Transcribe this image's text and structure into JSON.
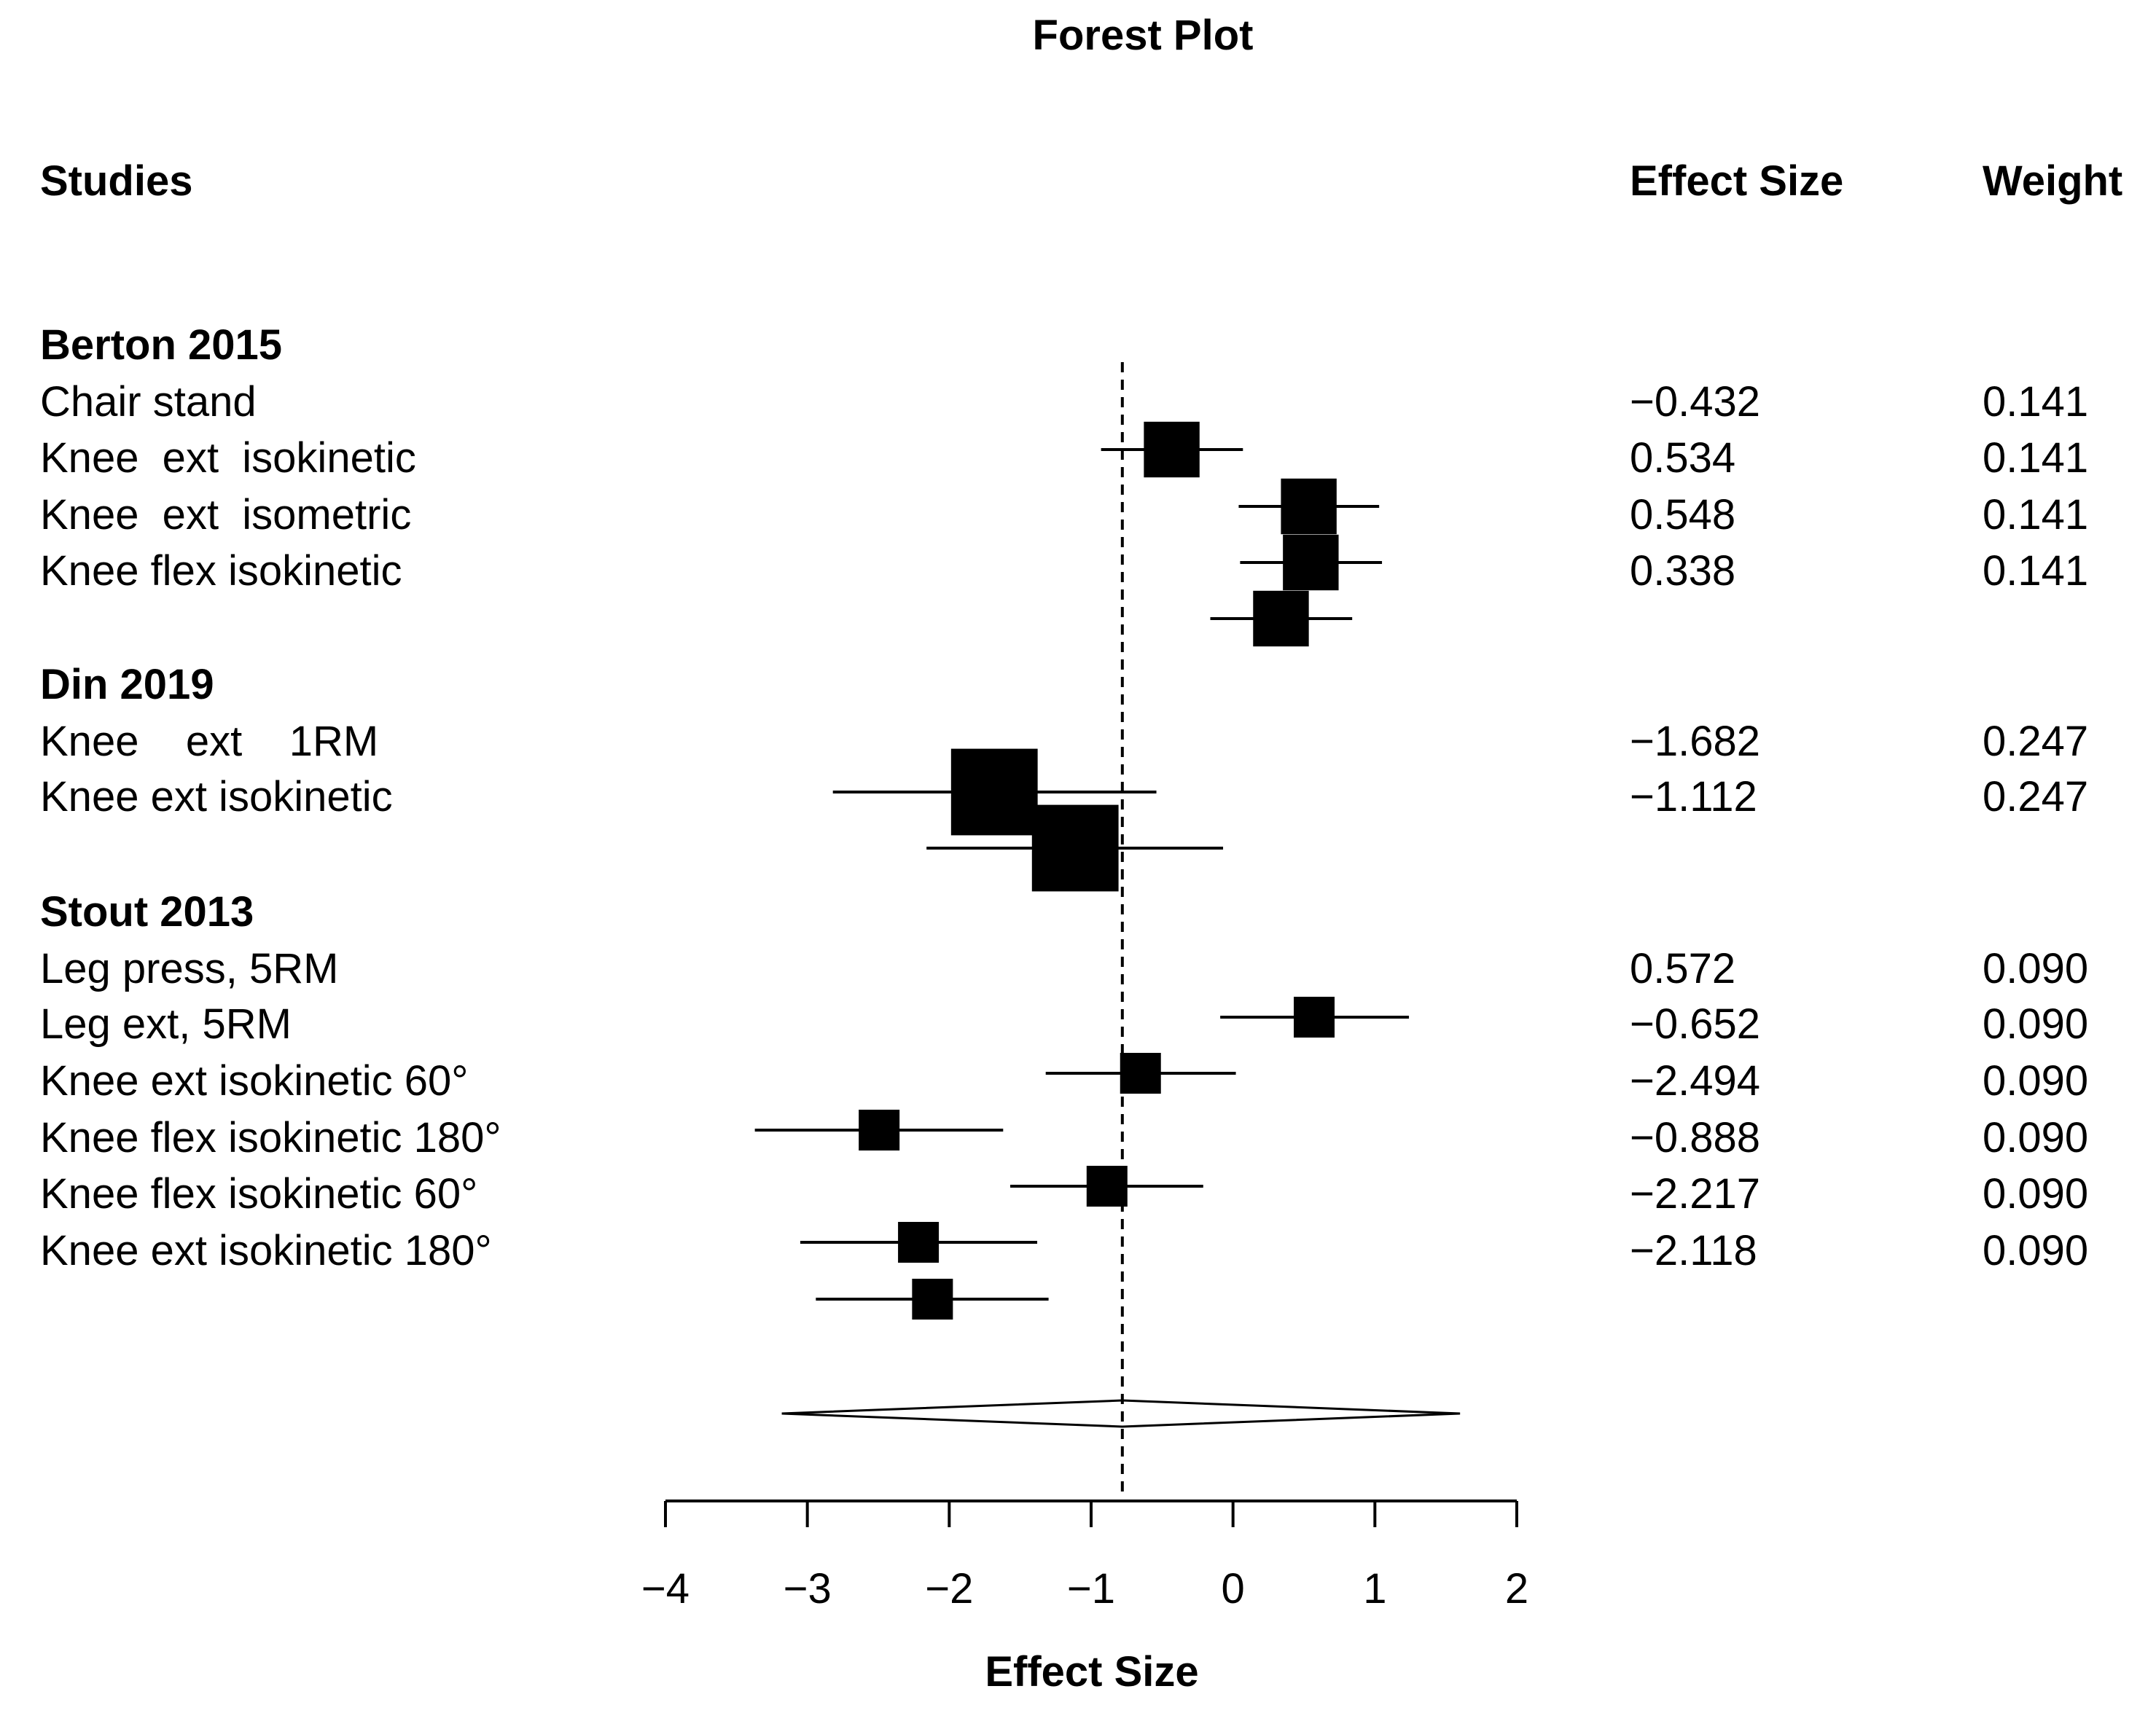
{
  "chart_data": {
    "type": "forest",
    "title": "Forest Plot",
    "column_headers": {
      "studies": "Studies",
      "effect_size": "Effect Size",
      "weight": "Weight"
    },
    "xlabel": "Effect Size",
    "xlim": [
      -4,
      2
    ],
    "x_ticks": [
      -4,
      -3,
      -2,
      -1,
      0,
      1,
      2
    ],
    "x_tick_labels": [
      "−4",
      "−3",
      "−2",
      "−1",
      "0",
      "1",
      "2"
    ],
    "reference_line": -0.78,
    "groups": [
      {
        "name": "Berton 2015",
        "studies": [
          {
            "label": "Chair stand",
            "effect_text": "−0.432",
            "weight_text": "0.141",
            "point": -0.432,
            "ci": [
              -0.93,
              0.07
            ],
            "weight": 0.141
          },
          {
            "label": "Knee  ext  isokinetic",
            "effect_text": "0.534",
            "weight_text": "0.141",
            "point": 0.534,
            "ci": [
              0.04,
              1.03
            ],
            "weight": 0.141
          },
          {
            "label": "Knee  ext  isometric",
            "effect_text": "0.548",
            "weight_text": "0.141",
            "point": 0.548,
            "ci": [
              0.05,
              1.05
            ],
            "weight": 0.141
          },
          {
            "label": "Knee flex isokinetic",
            "effect_text": "0.338",
            "weight_text": "0.141",
            "point": 0.338,
            "ci": [
              -0.16,
              0.84
            ],
            "weight": 0.141
          }
        ]
      },
      {
        "name": "Din 2019",
        "studies": [
          {
            "label": "Knee    ext    1RM",
            "effect_text": "−1.682",
            "weight_text": "0.247",
            "point": -1.682,
            "ci": [
              -2.82,
              -0.54
            ],
            "weight": 0.247
          },
          {
            "label": "Knee ext isokinetic",
            "effect_text": "−1.112",
            "weight_text": "0.247",
            "point": -1.112,
            "ci": [
              -2.16,
              -0.07
            ],
            "weight": 0.247
          }
        ]
      },
      {
        "name": "Stout 2013",
        "studies": [
          {
            "label": "Leg press, 5RM",
            "effect_text": "0.572",
            "weight_text": "0.090",
            "point": 0.572,
            "ci": [
              -0.09,
              1.24
            ],
            "weight": 0.09
          },
          {
            "label": "Leg ext, 5RM",
            "effect_text": "−0.652",
            "weight_text": "0.090",
            "point": -0.652,
            "ci": [
              -1.32,
              0.02
            ],
            "weight": 0.09
          },
          {
            "label": "Knee ext isokinetic 60°",
            "effect_text": "−2.494",
            "weight_text": "0.090",
            "point": -2.494,
            "ci": [
              -3.37,
              -1.62
            ],
            "weight": 0.09
          },
          {
            "label": "Knee flex isokinetic 180°",
            "effect_text": "−0.888",
            "weight_text": "0.090",
            "point": -0.888,
            "ci": [
              -1.57,
              -0.21
            ],
            "weight": 0.09
          },
          {
            "label": "Knee flex isokinetic 60°",
            "effect_text": "−2.217",
            "weight_text": "0.090",
            "point": -2.217,
            "ci": [
              -3.05,
              -1.38
            ],
            "weight": 0.09
          },
          {
            "label": "Knee ext isokinetic 180°",
            "effect_text": "−2.118",
            "weight_text": "0.090",
            "point": -2.118,
            "ci": [
              -2.94,
              -1.3
            ],
            "weight": 0.09
          }
        ]
      }
    ],
    "summary": {
      "point": -0.78,
      "ci": [
        -3.18,
        1.6
      ]
    }
  }
}
